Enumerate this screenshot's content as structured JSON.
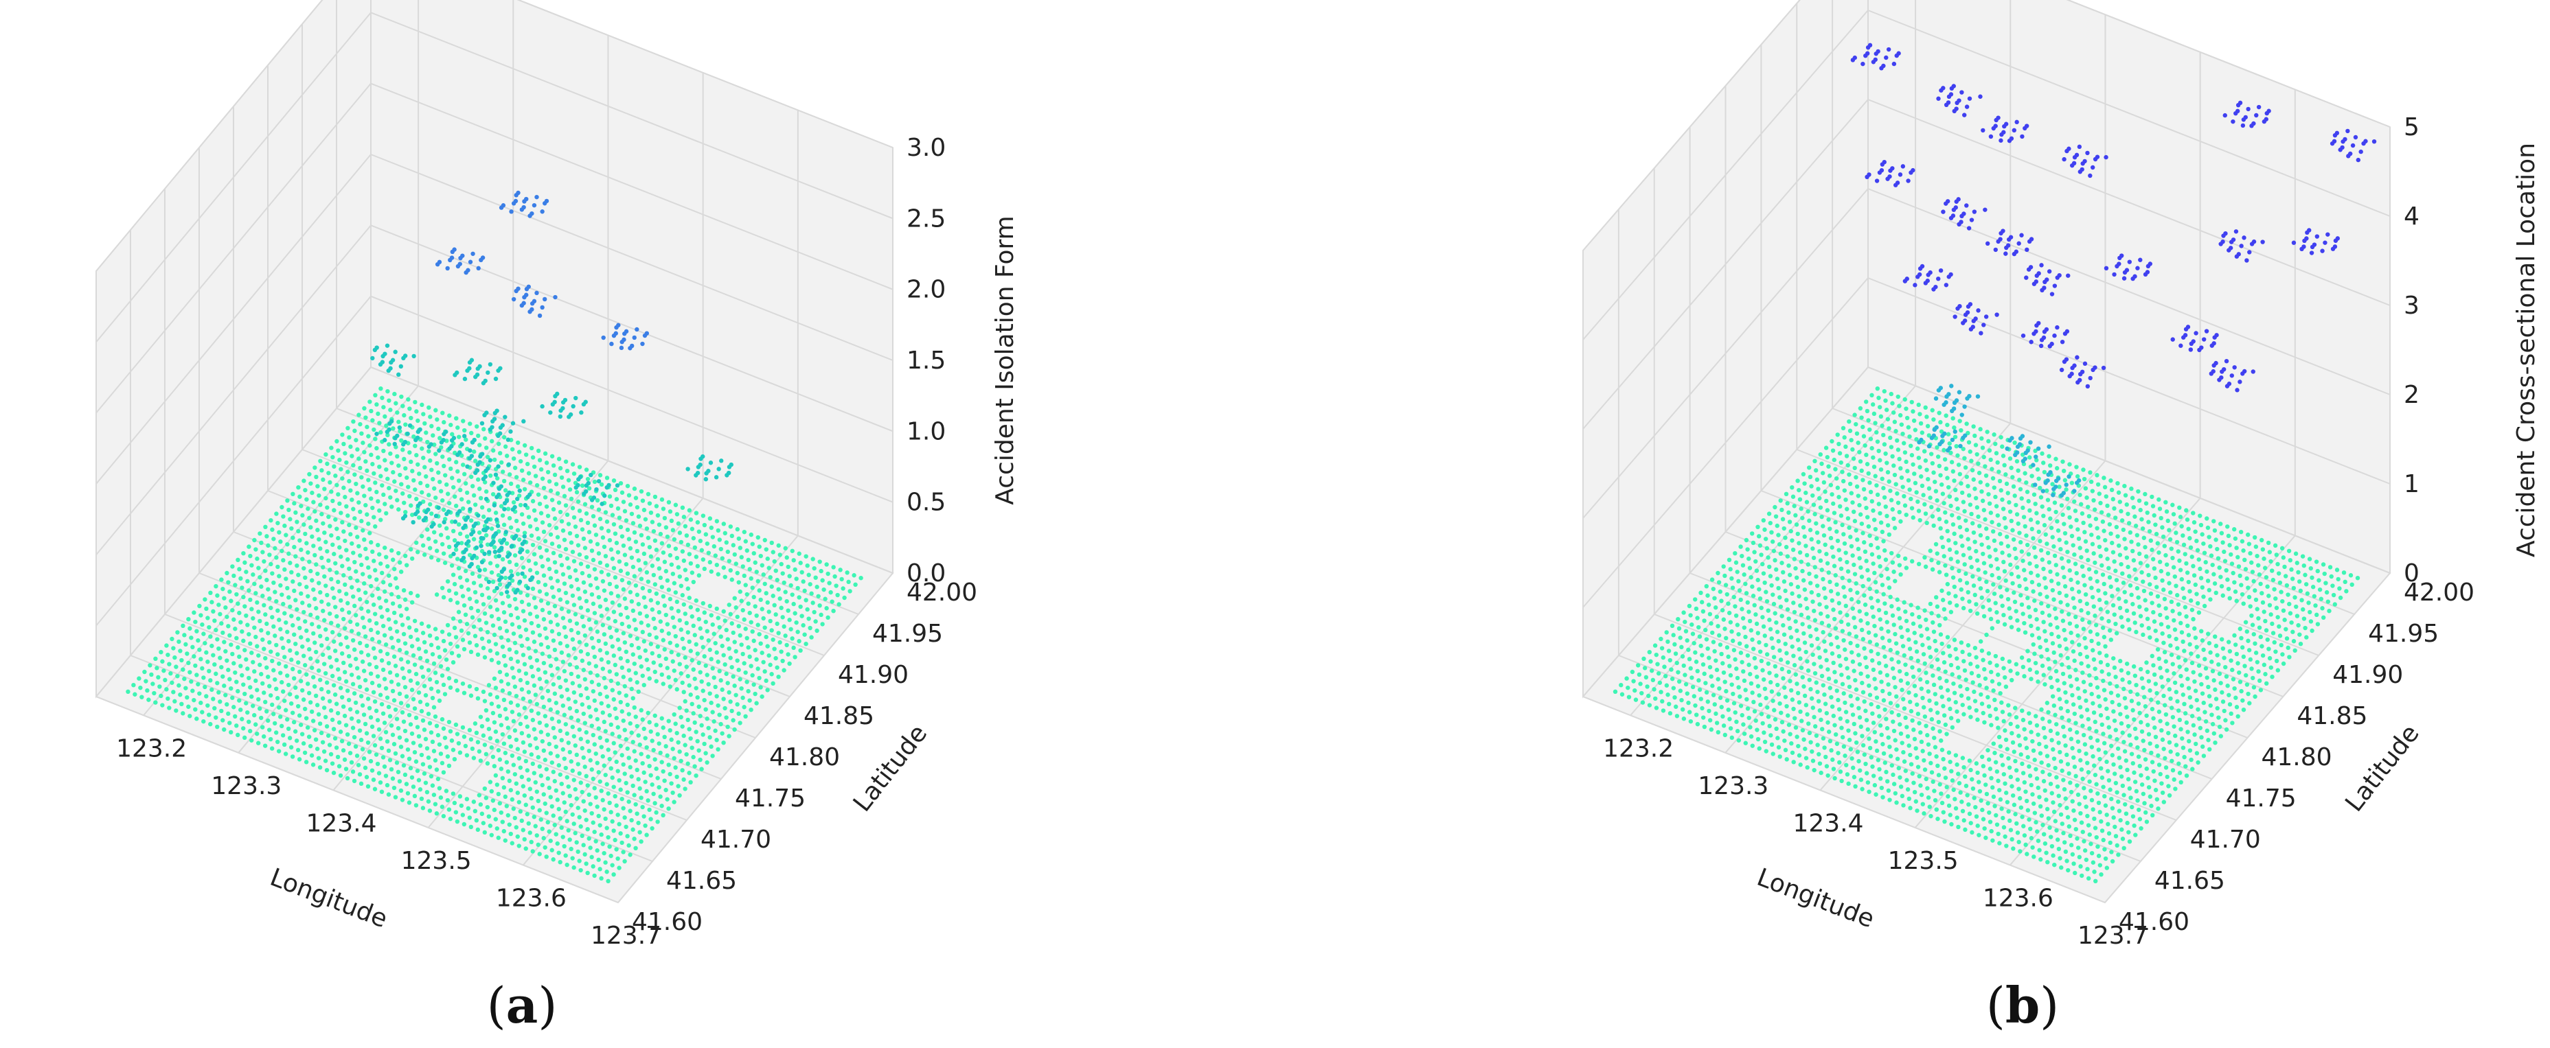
{
  "chart_data": [
    {
      "type": "scatter",
      "title": "",
      "caption_label": "a",
      "xlabel": "Longitude",
      "ylabel": "Latitude",
      "zlabel": "Accident Isolation Form",
      "xlim": [
        123.15,
        123.7
      ],
      "ylim": [
        41.6,
        42.0
      ],
      "zlim": [
        0,
        3.0
      ],
      "x_ticks": [
        "123.2",
        "123.3",
        "123.4",
        "123.5",
        "123.6",
        "123.7"
      ],
      "y_ticks": [
        "41.60",
        "41.65",
        "41.70",
        "41.75",
        "41.80",
        "41.85",
        "41.90",
        "41.95",
        "42.00"
      ],
      "z_ticks": [
        "0.0",
        "0.5",
        "1.0",
        "1.5",
        "2.0",
        "2.5",
        "3.0"
      ],
      "grid": true,
      "colors": {
        "zero_plane": "#3df5b4",
        "mid": "#1fc8c0",
        "high": "#3a7ee6"
      },
      "series": [
        {
          "values_z": 0,
          "shape": "plane_with_gaps",
          "gaps": [
            [
              123.36,
              41.8
            ],
            [
              123.33,
              41.83
            ],
            [
              123.43,
              41.76
            ],
            [
              123.45,
              41.72
            ],
            [
              123.5,
              41.66
            ],
            [
              123.28,
              41.86
            ],
            [
              123.6,
              41.8
            ],
            [
              123.57,
              41.92
            ]
          ]
        },
        {
          "values_z": 0.5,
          "points": [
            [
              123.34,
              41.82
            ],
            [
              123.4,
              41.8
            ],
            [
              123.45,
              41.79
            ],
            [
              123.38,
              41.83
            ],
            [
              123.42,
              41.82
            ]
          ]
        },
        {
          "values_z": 1.0,
          "points": [
            [
              123.36,
              41.83
            ],
            [
              123.4,
              41.82
            ],
            [
              123.44,
              41.8
            ],
            [
              123.46,
              41.76
            ],
            [
              123.31,
              41.82
            ],
            [
              123.5,
              41.84
            ],
            [
              123.58,
              41.9
            ]
          ]
        },
        {
          "values_z": 1.5,
          "points": [
            [
              123.38,
              41.84
            ],
            [
              123.43,
              41.8
            ],
            [
              123.47,
              41.84
            ],
            [
              123.3,
              41.82
            ]
          ]
        },
        {
          "values_z": 2.0,
          "points": [
            [
              123.34,
              41.87
            ],
            [
              123.42,
              41.86
            ],
            [
              123.52,
              41.86
            ]
          ]
        },
        {
          "values_z": 2.5,
          "points": [
            [
              123.4,
              41.88
            ]
          ]
        }
      ]
    },
    {
      "type": "scatter",
      "title": "",
      "caption_label": "b",
      "xlabel": "Longitude",
      "ylabel": "Latitude",
      "zlabel": "Accident Cross-sectional Location",
      "xlim": [
        123.15,
        123.7
      ],
      "ylim": [
        41.6,
        42.0
      ],
      "zlim": [
        0,
        5
      ],
      "x_ticks": [
        "123.2",
        "123.3",
        "123.4",
        "123.5",
        "123.6",
        "123.7"
      ],
      "y_ticks": [
        "41.60",
        "41.65",
        "41.70",
        "41.75",
        "41.80",
        "41.85",
        "41.90",
        "41.95",
        "42.00"
      ],
      "z_ticks": [
        "0",
        "1",
        "2",
        "3",
        "4",
        "5"
      ],
      "grid": true,
      "colors": {
        "zero_plane": "#3df5b4",
        "mid": "#2bb3d6",
        "high": "#4040f0"
      },
      "series": [
        {
          "values_z": 0,
          "shape": "plane_with_gaps",
          "gaps": [
            [
              123.34,
              41.82
            ],
            [
              123.4,
              41.8
            ],
            [
              123.45,
              41.8
            ],
            [
              123.5,
              41.76
            ],
            [
              123.3,
              41.86
            ],
            [
              123.55,
              41.84
            ],
            [
              123.48,
              41.7
            ],
            [
              123.6,
              41.9
            ]
          ]
        },
        {
          "values_z": 2,
          "points": [
            [
              123.38,
              41.8
            ],
            [
              123.45,
              41.82
            ],
            [
              123.5,
              41.8
            ],
            [
              123.36,
              41.84
            ]
          ]
        },
        {
          "values_z": 3,
          "points": [
            [
              123.32,
              41.86
            ],
            [
              123.38,
              41.84
            ],
            [
              123.45,
              41.85
            ],
            [
              123.5,
              41.83
            ],
            [
              123.57,
              41.9
            ],
            [
              123.62,
              41.88
            ]
          ]
        },
        {
          "values_z": 4,
          "points": [
            [
              123.28,
              41.86
            ],
            [
              123.36,
              41.85
            ],
            [
              123.42,
              41.84
            ],
            [
              123.47,
              41.82
            ],
            [
              123.53,
              41.86
            ],
            [
              123.6,
              41.92
            ],
            [
              123.66,
              41.95
            ]
          ]
        },
        {
          "values_z": 5,
          "points": [
            [
              123.25,
              41.88
            ],
            [
              123.34,
              41.87
            ],
            [
              123.4,
              41.86
            ],
            [
              123.48,
              41.86
            ],
            [
              123.58,
              41.96
            ],
            [
              123.68,
              41.97
            ]
          ]
        }
      ]
    }
  ]
}
